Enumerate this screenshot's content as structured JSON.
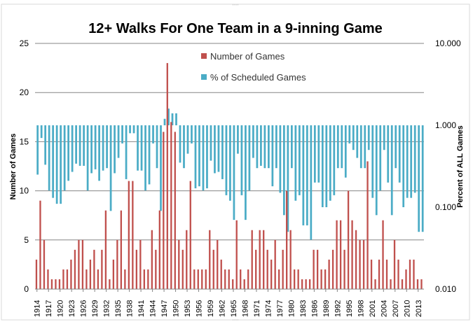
{
  "chart_data": {
    "type": "bar",
    "title": "12+ Walks For One Team in a 9-inning Game",
    "ylabel": "Number of Games",
    "y2label": "Percent of ALL Games",
    "ylim": [
      0,
      25
    ],
    "y_ticks": [
      "0",
      "5",
      "10",
      "15",
      "20",
      "25"
    ],
    "y2lim": [
      0.01,
      10
    ],
    "y2_scale": "log",
    "y2_ticks": [
      "0.010",
      "0.100",
      "1.000",
      "10.000"
    ],
    "grid": "horizontal",
    "legend_position": "top-center",
    "x_tick_labels": [
      "1914",
      "1917",
      "1920",
      "1923",
      "1926",
      "1929",
      "1932",
      "1935",
      "1938",
      "1941",
      "1944",
      "1947",
      "1950",
      "1953",
      "1956",
      "1959",
      "1962",
      "1965",
      "1968",
      "1971",
      "1974",
      "1977",
      "1980",
      "1983",
      "1986",
      "1989",
      "1992",
      "1995",
      "1998",
      "2001",
      "2004",
      "2007",
      "2010",
      "2013"
    ],
    "categories": [
      1914,
      1915,
      1916,
      1917,
      1918,
      1919,
      1920,
      1921,
      1922,
      1923,
      1924,
      1925,
      1926,
      1927,
      1928,
      1929,
      1930,
      1931,
      1932,
      1933,
      1934,
      1935,
      1936,
      1937,
      1938,
      1939,
      1940,
      1941,
      1942,
      1943,
      1944,
      1945,
      1946,
      1947,
      1948,
      1949,
      1950,
      1951,
      1952,
      1953,
      1954,
      1955,
      1956,
      1957,
      1958,
      1959,
      1960,
      1961,
      1962,
      1963,
      1964,
      1965,
      1966,
      1967,
      1968,
      1969,
      1970,
      1971,
      1972,
      1973,
      1974,
      1975,
      1976,
      1977,
      1978,
      1979,
      1980,
      1981,
      1982,
      1983,
      1984,
      1985,
      1986,
      1987,
      1988,
      1989,
      1990,
      1991,
      1992,
      1993,
      1994,
      1995,
      1996,
      1997,
      1998,
      1999,
      2000,
      2001,
      2002,
      2003,
      2004,
      2005,
      2006,
      2007,
      2008,
      2009,
      2010,
      2011,
      2012,
      2013,
      2014
    ],
    "series": [
      {
        "name": "Number of Games",
        "color": "#c0504d",
        "axis": "left",
        "values": [
          3,
          9,
          5,
          2,
          1,
          1,
          1,
          2,
          2,
          3,
          4,
          5,
          5,
          2,
          3,
          4,
          2,
          4,
          8,
          1,
          3,
          5,
          8,
          2,
          11,
          11,
          4,
          5,
          2,
          2,
          6,
          4,
          8,
          16,
          23,
          17,
          16,
          5,
          4,
          6,
          11,
          2,
          2,
          2,
          2,
          6,
          4,
          5,
          3,
          2,
          2,
          1,
          7,
          2,
          1,
          2,
          6,
          4,
          6,
          6,
          4,
          3,
          5,
          2,
          4,
          10,
          6,
          2,
          2,
          1,
          1,
          1,
          4,
          4,
          2,
          2,
          3,
          4,
          7,
          7,
          4,
          10,
          7,
          6,
          5,
          5,
          13,
          3,
          1,
          3,
          7,
          3,
          1,
          5,
          3,
          1,
          2,
          3,
          3,
          1,
          1
        ]
      },
      {
        "name": "% of Scheduled Games",
        "color": "#4bacc6",
        "axis": "right",
        "values": [
          0.25,
          0.7,
          0.33,
          0.16,
          0.13,
          0.11,
          0.11,
          0.16,
          0.21,
          0.27,
          0.34,
          0.32,
          0.32,
          0.16,
          0.26,
          0.29,
          0.21,
          0.28,
          0.3,
          0.09,
          0.26,
          0.4,
          0.6,
          0.22,
          0.8,
          0.8,
          0.28,
          0.28,
          0.16,
          0.19,
          0.6,
          0.3,
          0.09,
          1.2,
          1.6,
          1.4,
          1.4,
          0.35,
          0.3,
          0.45,
          0.6,
          0.17,
          0.18,
          0.16,
          0.17,
          0.37,
          0.26,
          0.27,
          0.22,
          0.14,
          0.12,
          0.07,
          0.45,
          0.14,
          0.07,
          0.16,
          0.4,
          0.3,
          0.32,
          0.3,
          0.3,
          0.18,
          0.3,
          0.15,
          0.08,
          0.05,
          0.3,
          0.12,
          0.14,
          0.06,
          0.06,
          0.04,
          0.2,
          0.2,
          0.1,
          0.1,
          0.12,
          0.14,
          0.3,
          0.3,
          0.23,
          0.6,
          0.5,
          0.4,
          0.3,
          0.3,
          0.5,
          0.13,
          0.08,
          0.16,
          0.5,
          0.2,
          0.08,
          0.3,
          0.2,
          0.1,
          0.13,
          0.13,
          0.15,
          0.05,
          0.05
        ]
      }
    ]
  }
}
